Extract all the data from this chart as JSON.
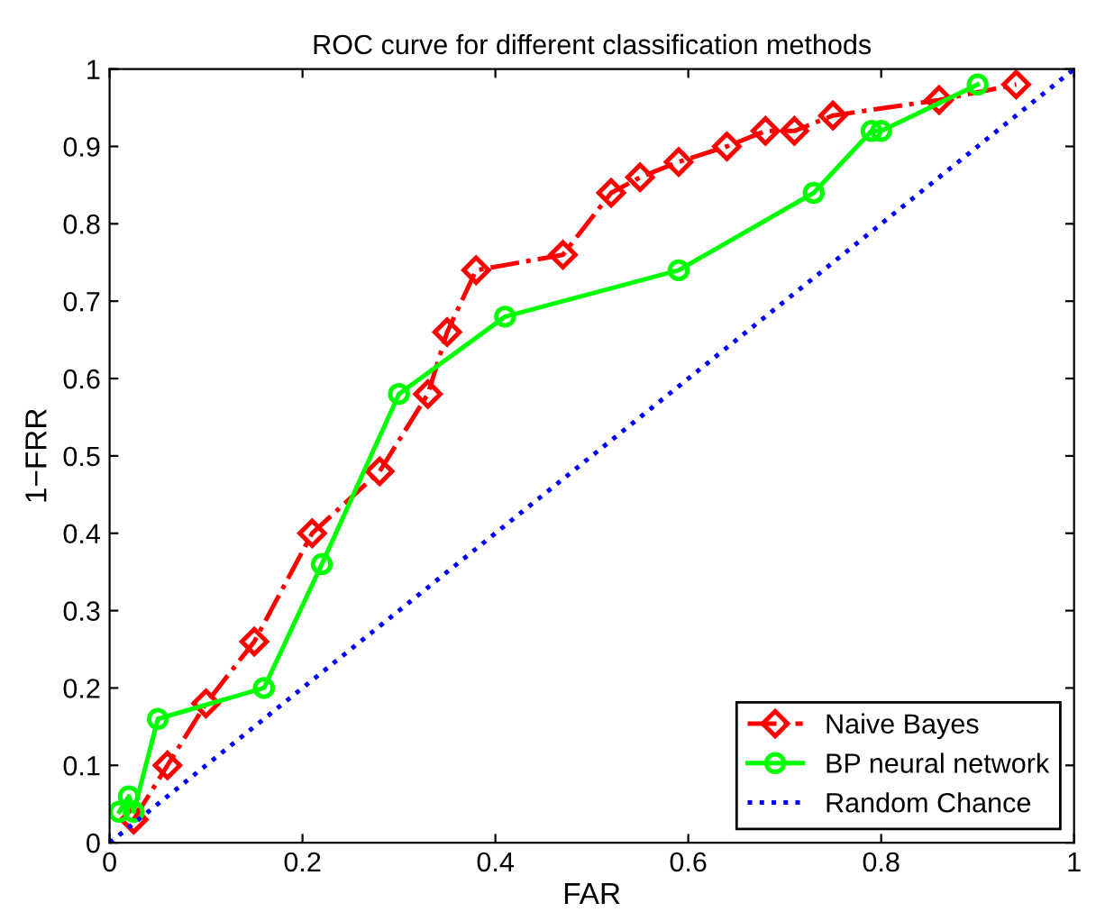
{
  "chart_data": {
    "type": "line",
    "title": "ROC curve for different classification methods",
    "xlabel": "FAR",
    "ylabel": "1−FRR",
    "xlim": [
      0,
      1
    ],
    "ylim": [
      0,
      1
    ],
    "xticks": [
      0,
      0.2,
      0.4,
      0.6,
      0.8,
      1
    ],
    "yticks": [
      0,
      0.1,
      0.2,
      0.3,
      0.4,
      0.5,
      0.6,
      0.7,
      0.8,
      0.9,
      1
    ],
    "grid": false,
    "legend": "bottom right",
    "series": [
      {
        "name": "Naive Bayes",
        "color": "#ff0000",
        "marker": "diamond",
        "line_style": "dashdot",
        "x": [
          0.025,
          0.06,
          0.1,
          0.15,
          0.21,
          0.28,
          0.33,
          0.35,
          0.38,
          0.47,
          0.52,
          0.55,
          0.59,
          0.64,
          0.68,
          0.71,
          0.75,
          0.86,
          0.94
        ],
        "values": [
          0.03,
          0.1,
          0.18,
          0.26,
          0.4,
          0.48,
          0.58,
          0.66,
          0.74,
          0.76,
          0.84,
          0.86,
          0.88,
          0.9,
          0.92,
          0.92,
          0.94,
          0.96,
          0.98
        ]
      },
      {
        "name": "BP neural network",
        "color": "#00ff00",
        "marker": "circle",
        "line_style": "solid",
        "x": [
          0.01,
          0.02,
          0.025,
          0.05,
          0.16,
          0.22,
          0.3,
          0.41,
          0.59,
          0.73,
          0.79,
          0.8,
          0.9
        ],
        "values": [
          0.04,
          0.06,
          0.04,
          0.16,
          0.2,
          0.36,
          0.58,
          0.68,
          0.74,
          0.84,
          0.92,
          0.92,
          0.98
        ]
      },
      {
        "name": "Random Chance",
        "color": "#0000ff",
        "marker": "none",
        "line_style": "dotted",
        "x": [
          0,
          1
        ],
        "values": [
          0,
          1
        ]
      }
    ]
  }
}
